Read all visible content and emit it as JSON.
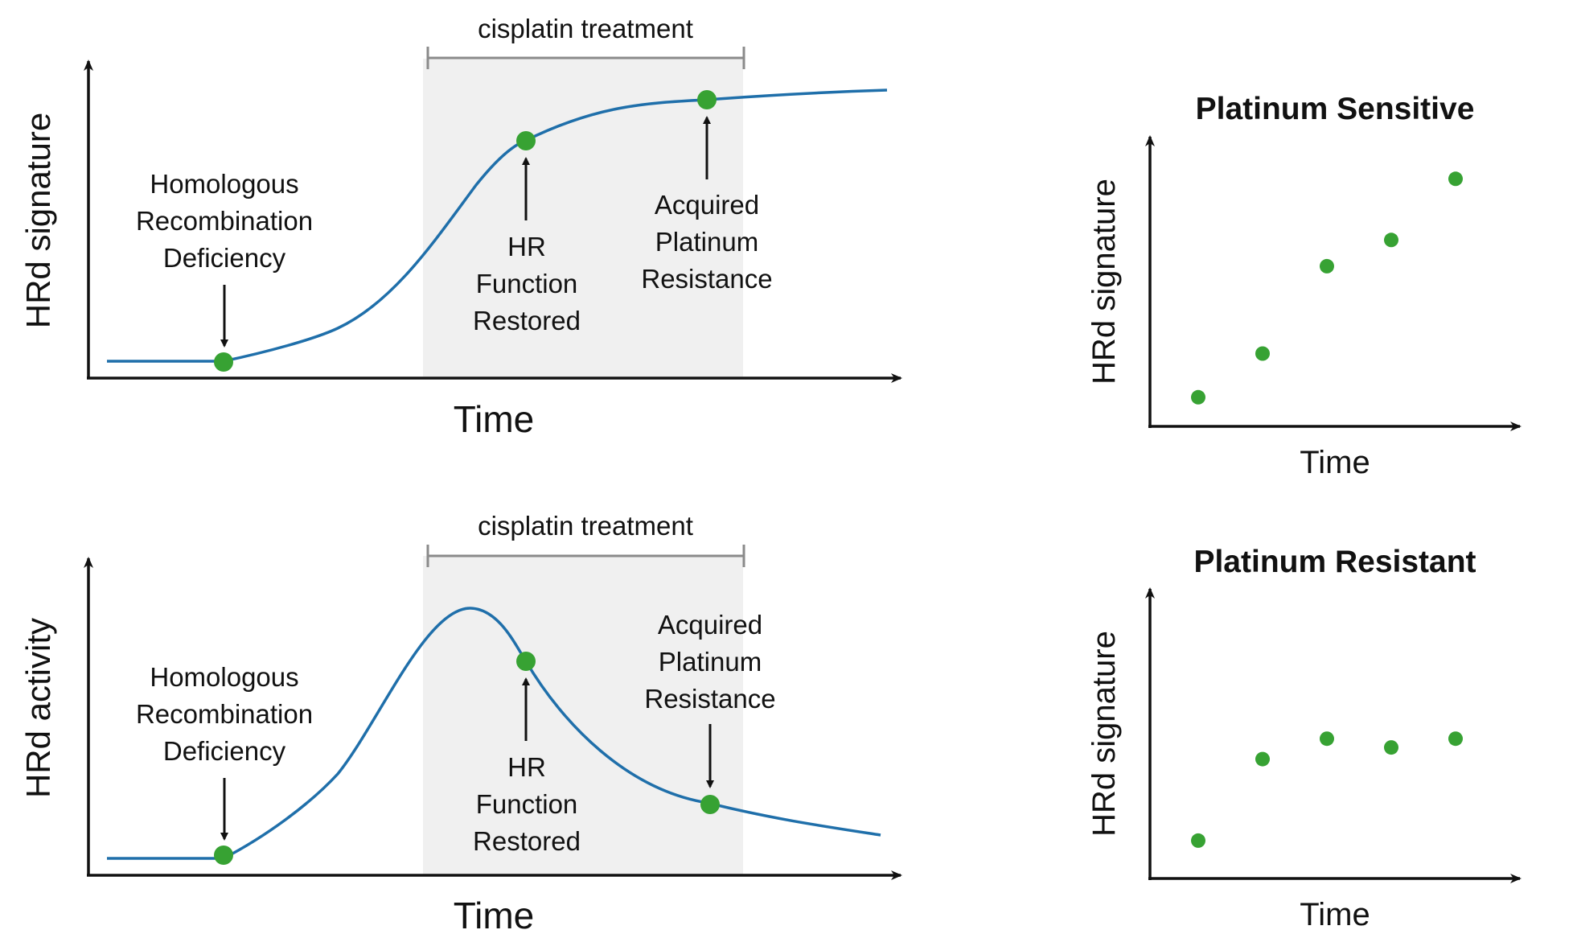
{
  "colors": {
    "curve": "#1f6faa",
    "point": "#37a233",
    "treatment_bg": "#f0f0f0",
    "bracket": "#8a8a8a",
    "axis": "#111111"
  },
  "panel_top": {
    "ylabel": "HRd signature",
    "xlabel": "Time",
    "treatment": "cisplatin treatment",
    "annotations": {
      "hrd": [
        "Homologous",
        "Recombination",
        "Deficiency"
      ],
      "restored": [
        "HR",
        "Function",
        "Restored"
      ],
      "resistance": [
        "Acquired",
        "Platinum",
        "Resistance"
      ]
    }
  },
  "panel_bottom": {
    "ylabel": "HRd activity",
    "xlabel": "Time",
    "treatment": "cisplatin treatment",
    "annotations": {
      "hrd": [
        "Homologous",
        "Recombination",
        "Deficiency"
      ],
      "restored": [
        "HR",
        "Function",
        "Restored"
      ],
      "resistance": [
        "Acquired",
        "Platinum",
        "Resistance"
      ]
    }
  },
  "chart_data": [
    {
      "type": "scatter",
      "title": "Platinum Sensitive",
      "xlabel": "Time",
      "ylabel": "HRd signature",
      "x": [
        1,
        2,
        3,
        4,
        5
      ],
      "y": [
        0.1,
        0.25,
        0.55,
        0.64,
        0.85
      ],
      "xlim": [
        0.25,
        6
      ],
      "ylim": [
        0,
        1
      ]
    },
    {
      "type": "scatter",
      "title": "Platinum Resistant",
      "xlabel": "Time",
      "ylabel": "HRd signature",
      "x": [
        1,
        2,
        3,
        4,
        5
      ],
      "y": [
        0.13,
        0.41,
        0.48,
        0.45,
        0.48
      ],
      "xlim": [
        0.25,
        6
      ],
      "ylim": [
        0,
        1
      ]
    }
  ]
}
